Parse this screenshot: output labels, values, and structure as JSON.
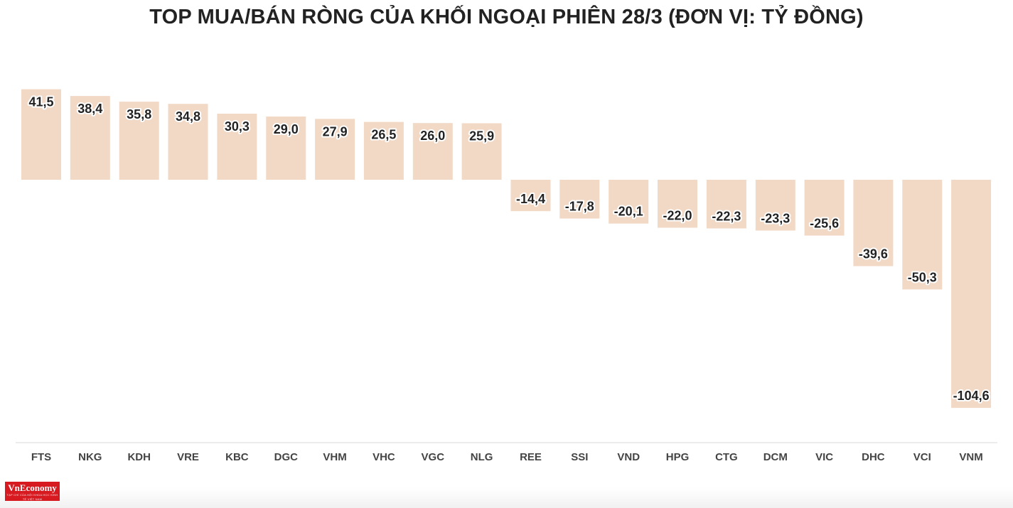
{
  "chart_data": {
    "type": "bar",
    "title": "TOP MUA/BÁN RÒNG CỦA KHỐI NGOẠI PHIÊN 28/3 (ĐƠN VỊ: TỶ ĐỒNG)",
    "xlabel": "",
    "ylabel": "",
    "categories": [
      "FTS",
      "NKG",
      "KDH",
      "VRE",
      "KBC",
      "DGC",
      "VHM",
      "VHC",
      "VGC",
      "NLG",
      "REE",
      "SSI",
      "VND",
      "HPG",
      "CTG",
      "DCM",
      "VIC",
      "DHC",
      "VCI",
      "VNM"
    ],
    "values": [
      41.5,
      38.4,
      35.8,
      34.8,
      30.3,
      29.0,
      27.9,
      26.5,
      26.0,
      25.9,
      -14.4,
      -17.8,
      -20.1,
      -22.0,
      -22.3,
      -23.3,
      -25.6,
      -39.6,
      -50.3,
      -104.6
    ],
    "value_labels": [
      "41,5",
      "38,4",
      "35,8",
      "34,8",
      "30,3",
      "29,0",
      "27,9",
      "26,5",
      "26,0",
      "25,9",
      "-14,4",
      "-17,8",
      "-20,1",
      "-22,0",
      "-22,3",
      "-23,3",
      "-25,6",
      "-39,6",
      "-50,3",
      "-104,6"
    ],
    "ylim": [
      -120,
      45
    ],
    "grid": false,
    "legend": "none",
    "bar_color": "#f2d9c6",
    "axis_color": "#d8d8d8"
  },
  "brand": {
    "logo_text": "VnEconomy",
    "logo_tagline": "TẠP CHÍ CỦA HỘI KHOA HỌC KINH TẾ VIỆT NAM",
    "logo_color": "#d71920"
  }
}
